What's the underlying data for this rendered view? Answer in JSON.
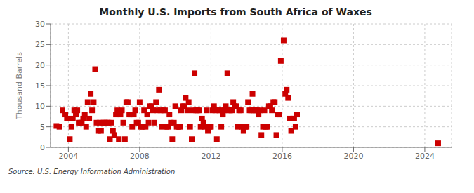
{
  "chart_data": {
    "type": "scatter",
    "title": "Monthly U.S. Imports from South Africa of Waxes",
    "ylabel": "Thousand Barrels",
    "annotations": [
      "Source: U.S. Energy Information Administration"
    ],
    "color": "#cc0000",
    "marker": "square",
    "grid": true,
    "xlim": [
      2003.0,
      2025.5
    ],
    "xticks": [
      2004,
      2008,
      2012,
      2016,
      2020,
      2024
    ],
    "ylim": [
      0,
      30
    ],
    "yticks": [
      0,
      5,
      10,
      15,
      20,
      25,
      30
    ],
    "x": [
      2003.33,
      2003.5,
      2003.67,
      2003.83,
      2003.92,
      2004.08,
      2004.17,
      2004.25,
      2004.33,
      2004.42,
      2004.5,
      2004.58,
      2004.67,
      2004.75,
      2004.83,
      2004.92,
      2005.0,
      2005.08,
      2005.17,
      2005.25,
      2005.33,
      2005.42,
      2005.5,
      2005.58,
      2005.67,
      2005.75,
      2005.83,
      2005.92,
      2006.0,
      2006.08,
      2006.17,
      2006.25,
      2006.33,
      2006.42,
      2006.5,
      2006.58,
      2006.67,
      2006.75,
      2006.83,
      2006.92,
      2007.0,
      2007.08,
      2007.17,
      2007.25,
      2007.33,
      2007.42,
      2007.5,
      2007.58,
      2007.67,
      2007.75,
      2007.83,
      2007.92,
      2008.0,
      2008.08,
      2008.17,
      2008.25,
      2008.33,
      2008.42,
      2008.5,
      2008.58,
      2008.67,
      2008.75,
      2008.83,
      2008.92,
      2009.0,
      2009.08,
      2009.17,
      2009.25,
      2009.33,
      2009.42,
      2009.5,
      2009.58,
      2009.67,
      2009.75,
      2009.83,
      2009.92,
      2010.0,
      2010.08,
      2010.17,
      2010.25,
      2010.33,
      2010.42,
      2010.5,
      2010.58,
      2010.67,
      2010.75,
      2010.83,
      2010.92,
      2011.0,
      2011.08,
      2011.17,
      2011.25,
      2011.33,
      2011.42,
      2011.5,
      2011.58,
      2011.67,
      2011.75,
      2011.83,
      2011.92,
      2012.0,
      2012.08,
      2012.17,
      2012.25,
      2012.33,
      2012.42,
      2012.5,
      2012.58,
      2012.67,
      2012.75,
      2012.83,
      2012.92,
      2013.0,
      2013.08,
      2013.17,
      2013.25,
      2013.33,
      2013.42,
      2013.5,
      2013.58,
      2013.67,
      2013.75,
      2013.83,
      2013.92,
      2014.0,
      2014.08,
      2014.17,
      2014.25,
      2014.33,
      2014.42,
      2014.5,
      2014.58,
      2014.67,
      2014.75,
      2014.83,
      2014.92,
      2015.0,
      2015.08,
      2015.17,
      2015.25,
      2015.33,
      2015.42,
      2015.5,
      2015.58,
      2015.67,
      2015.75,
      2015.83,
      2015.92,
      2016.08,
      2016.17,
      2016.25,
      2016.33,
      2016.42,
      2016.5,
      2016.58,
      2016.67,
      2016.75,
      2016.83,
      2024.75
    ],
    "values": [
      5.2,
      5.0,
      9.0,
      8.0,
      7.0,
      2.0,
      5.0,
      7.0,
      9.0,
      8.0,
      9.0,
      6.0,
      6.0,
      6.0,
      7.0,
      8.0,
      5.0,
      11.0,
      7.0,
      13.0,
      9.0,
      11.0,
      19.0,
      6.0,
      4.0,
      6.0,
      4.0,
      6.0,
      6.0,
      6.0,
      6.0,
      6.0,
      2.0,
      6.0,
      4.0,
      3.0,
      8.0,
      9.0,
      2.0,
      8.0,
      9.0,
      6.0,
      2.0,
      11.0,
      11.0,
      8.0,
      8.0,
      5.0,
      8.0,
      9.0,
      6.0,
      6.0,
      11.0,
      5.0,
      5.0,
      9.0,
      5.0,
      8.0,
      6.0,
      10.0,
      10.0,
      9.0,
      6.0,
      11.0,
      9.0,
      14.0,
      9.0,
      5.0,
      9.0,
      9.0,
      5.0,
      5.0,
      8.0,
      6.0,
      2.0,
      6.0,
      10.0,
      5.0,
      5.0,
      5.0,
      9.0,
      10.0,
      10.0,
      12.0,
      9.0,
      11.0,
      5.0,
      2.0,
      9.0,
      18.0,
      9.0,
      9.0,
      9.0,
      5.0,
      7.0,
      6.0,
      5.0,
      9.0,
      4.0,
      5.0,
      5.0,
      9.0,
      10.0,
      9.0,
      2.0,
      9.0,
      9.0,
      5.0,
      8.0,
      9.0,
      10.0,
      18.0,
      9.0,
      9.0,
      9.0,
      11.0,
      10.0,
      10.0,
      5.0,
      9.0,
      9.0,
      5.0,
      4.0,
      5.0,
      5.0,
      11.0,
      9.0,
      9.0,
      13.0,
      9.0,
      9.0,
      9.0,
      8.0,
      9.0,
      3.0,
      5.0,
      9.0,
      5.0,
      5.0,
      10.0,
      10.0,
      9.0,
      11.0,
      11.0,
      3.0,
      8.0,
      8.0,
      21.0,
      26.0,
      13.0,
      14.0,
      12.0,
      7.0,
      4.0,
      7.0,
      7.0,
      5.0,
      8.0,
      1.0
    ]
  }
}
